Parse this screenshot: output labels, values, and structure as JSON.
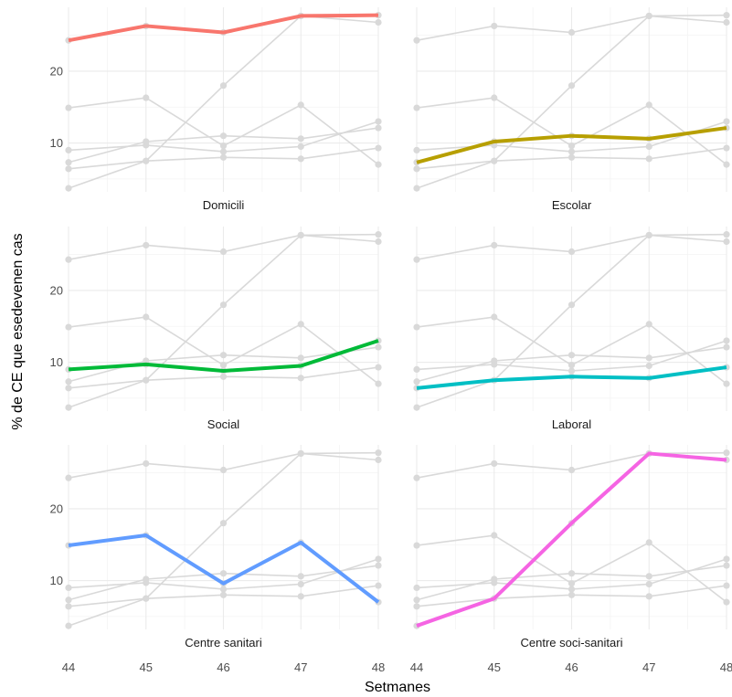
{
  "chart_data": {
    "type": "line",
    "xlabel": "Setmanes",
    "ylabel": "% de CE que esedevenen cas",
    "x": [
      44,
      45,
      46,
      47,
      48
    ],
    "x_tick_labels": [
      "44",
      "45",
      "46",
      "47",
      "48"
    ],
    "y_ticks": [
      10,
      20
    ],
    "y_tick_labels": [
      "10",
      "20"
    ],
    "ylim": [
      3.2,
      28.9
    ],
    "xlim": [
      44,
      48
    ],
    "grid": true,
    "background_series_color": "#d9d9d9",
    "series": [
      {
        "name": "Domicili",
        "color": "#f8766d",
        "values": [
          24.3,
          26.3,
          25.4,
          27.7,
          27.8
        ]
      },
      {
        "name": "Escolar",
        "color": "#b79f00",
        "values": [
          7.3,
          10.2,
          11.0,
          10.6,
          12.1
        ]
      },
      {
        "name": "Social",
        "color": "#00ba38",
        "values": [
          9.0,
          9.7,
          8.8,
          9.5,
          13.0
        ]
      },
      {
        "name": "Laboral",
        "color": "#00bfc4",
        "values": [
          6.4,
          7.5,
          8.0,
          7.8,
          9.3
        ]
      },
      {
        "name": "Centre sanitari",
        "color": "#619cff",
        "values": [
          14.9,
          16.3,
          9.6,
          15.3,
          7.0
        ]
      },
      {
        "name": "Centre soci-sanitari",
        "color": "#f564e3",
        "values": [
          3.7,
          7.5,
          18.0,
          27.7,
          26.8
        ]
      }
    ]
  }
}
